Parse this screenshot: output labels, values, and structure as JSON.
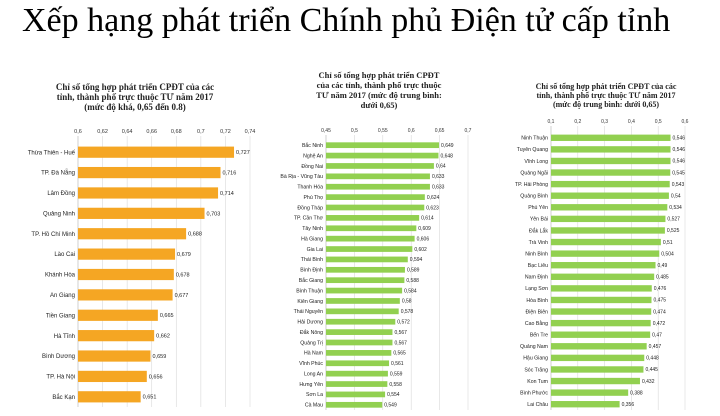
{
  "page": {
    "title": "Xếp hạng phát triển Chính phủ Điện tử cấp tỉnh"
  },
  "chart_data": [
    {
      "type": "bar",
      "orientation": "horizontal",
      "title_lines": [
        "Chỉ số tổng hợp phát triển CPĐT của các",
        "tỉnh, thành phố trực thuộc TƯ năm 2017",
        "(mức độ khá, 0,65 đến 0.8)"
      ],
      "color": "#F5A623",
      "xlim": [
        0.6,
        0.74
      ],
      "xticks": [
        "0,6",
        "0,62",
        "0,64",
        "0,66",
        "0,68",
        "0,7",
        "0,72",
        "0,74"
      ],
      "xtick_values": [
        0.6,
        0.62,
        0.64,
        0.66,
        0.68,
        0.7,
        0.72,
        0.74
      ],
      "grid": true,
      "categories": [
        "Thừa Thiên - Huế",
        "TP. Đà Nẵng",
        "Lâm Đồng",
        "Quảng Ninh",
        "TP. Hồ Chí Minh",
        "Lào Cai",
        "Khánh Hòa",
        "An Giang",
        "Tiền Giang",
        "Hà Tĩnh",
        "Bình Dương",
        "TP. Hà Nội",
        "Bắc Kạn"
      ],
      "values": [
        0.727,
        0.716,
        0.714,
        0.703,
        0.688,
        0.679,
        0.678,
        0.677,
        0.665,
        0.662,
        0.659,
        0.656,
        0.651
      ],
      "value_labels": [
        "0,727",
        "0,716",
        "0,714",
        "0,703",
        "0,688",
        "0,679",
        "0,678",
        "0,677",
        "0,665",
        "0,662",
        "0,659",
        "0,656",
        "0,651"
      ]
    },
    {
      "type": "bar",
      "orientation": "horizontal",
      "title_lines": [
        "Chỉ số tổng hợp phát triển CPĐT",
        "của các tỉnh, thành phố trực thuộc",
        "TƯ năm 2017 (mức độ trung bình:",
        "dưới 0,65)"
      ],
      "color": "#92D050",
      "xlim": [
        0.45,
        0.7
      ],
      "xticks": [
        "0,45",
        "0,5",
        "0,55",
        "0,6",
        "0,65",
        "0,7"
      ],
      "xtick_values": [
        0.45,
        0.5,
        0.55,
        0.6,
        0.65,
        0.7
      ],
      "grid": true,
      "categories": [
        "Bắc Ninh",
        "Nghệ An",
        "Đồng Nai",
        "Bà Rịa - Vũng Tàu",
        "Thanh Hóa",
        "Phú Thọ",
        "Đồng Tháp",
        "TP. Cần Thơ",
        "Tây Ninh",
        "Hà Giang",
        "Gia Lai",
        "Thái Bình",
        "Bình Định",
        "Bắc Giang",
        "Bình Thuận",
        "Kiên Giang",
        "Thái Nguyên",
        "Hải Dương",
        "Đắk Nông",
        "Quảng Trị",
        "Hà Nam",
        "Vĩnh Phúc",
        "Long An",
        "Hưng Yên",
        "Sơn La",
        "Cà Mau"
      ],
      "values": [
        0.649,
        0.648,
        0.64,
        0.633,
        0.633,
        0.624,
        0.623,
        0.614,
        0.609,
        0.606,
        0.602,
        0.594,
        0.589,
        0.588,
        0.584,
        0.58,
        0.578,
        0.572,
        0.567,
        0.567,
        0.565,
        0.561,
        0.559,
        0.558,
        0.554,
        0.549
      ],
      "value_labels": [
        "0,649",
        "0,648",
        "0,64",
        "0,633",
        "0,633",
        "0,624",
        "0,623",
        "0,614",
        "0,609",
        "0,606",
        "0,602",
        "0,594",
        "0,589",
        "0,588",
        "0,584",
        "0,58",
        "0,578",
        "0,572",
        "0,567",
        "0,567",
        "0,565",
        "0,561",
        "0,559",
        "0,558",
        "0,554",
        "0,549"
      ]
    },
    {
      "type": "bar",
      "orientation": "horizontal",
      "title_lines": [
        "Chỉ số tổng hợp phát triển CPĐT  của các",
        "tỉnh, thành phố trực thuộc TƯ năm 2017",
        "(mức độ trung bình: dưới 0,65)"
      ],
      "color": "#92D050",
      "xlim": [
        0.1,
        0.6
      ],
      "xticks": [
        "0,1",
        "0,2",
        "0,3",
        "0,4",
        "0,5",
        "0,6"
      ],
      "xtick_values": [
        0.1,
        0.2,
        0.3,
        0.4,
        0.5,
        0.6
      ],
      "grid": true,
      "categories": [
        "Ninh Thuận",
        "Tuyên Quang",
        "Vĩnh Long",
        "Quảng Ngãi",
        "TP. Hải Phòng",
        "Quảng Bình",
        "Phú Yên",
        "Yên Bái",
        "Đắk Lắk",
        "Trà Vinh",
        "Ninh Bình",
        "Bạc Liêu",
        "Nam Định",
        "Lạng Sơn",
        "Hòa Bình",
        "Điện Biên",
        "Cao Bằng",
        "Bến Tre",
        "Quảng Nam",
        "Hậu Giang",
        "Sóc Trăng",
        "Kon Tum",
        "Bình Phước",
        "Lai Châu"
      ],
      "values": [
        0.546,
        0.546,
        0.546,
        0.545,
        0.543,
        0.54,
        0.534,
        0.527,
        0.525,
        0.51,
        0.504,
        0.49,
        0.485,
        0.476,
        0.475,
        0.474,
        0.472,
        0.47,
        0.457,
        0.448,
        0.445,
        0.432,
        0.388,
        0.356
      ],
      "value_labels": [
        "0,546",
        "0,546",
        "0,546",
        "0,545",
        "0,543",
        "0,54",
        "0,534",
        "0,527",
        "0,525",
        "0,51",
        "0,504",
        "0,49",
        "0,485",
        "0,476",
        "0,475",
        "0,474",
        "0,472",
        "0,47",
        "0,457",
        "0,448",
        "0,445",
        "0,432",
        "0,388",
        "0,356"
      ]
    }
  ]
}
